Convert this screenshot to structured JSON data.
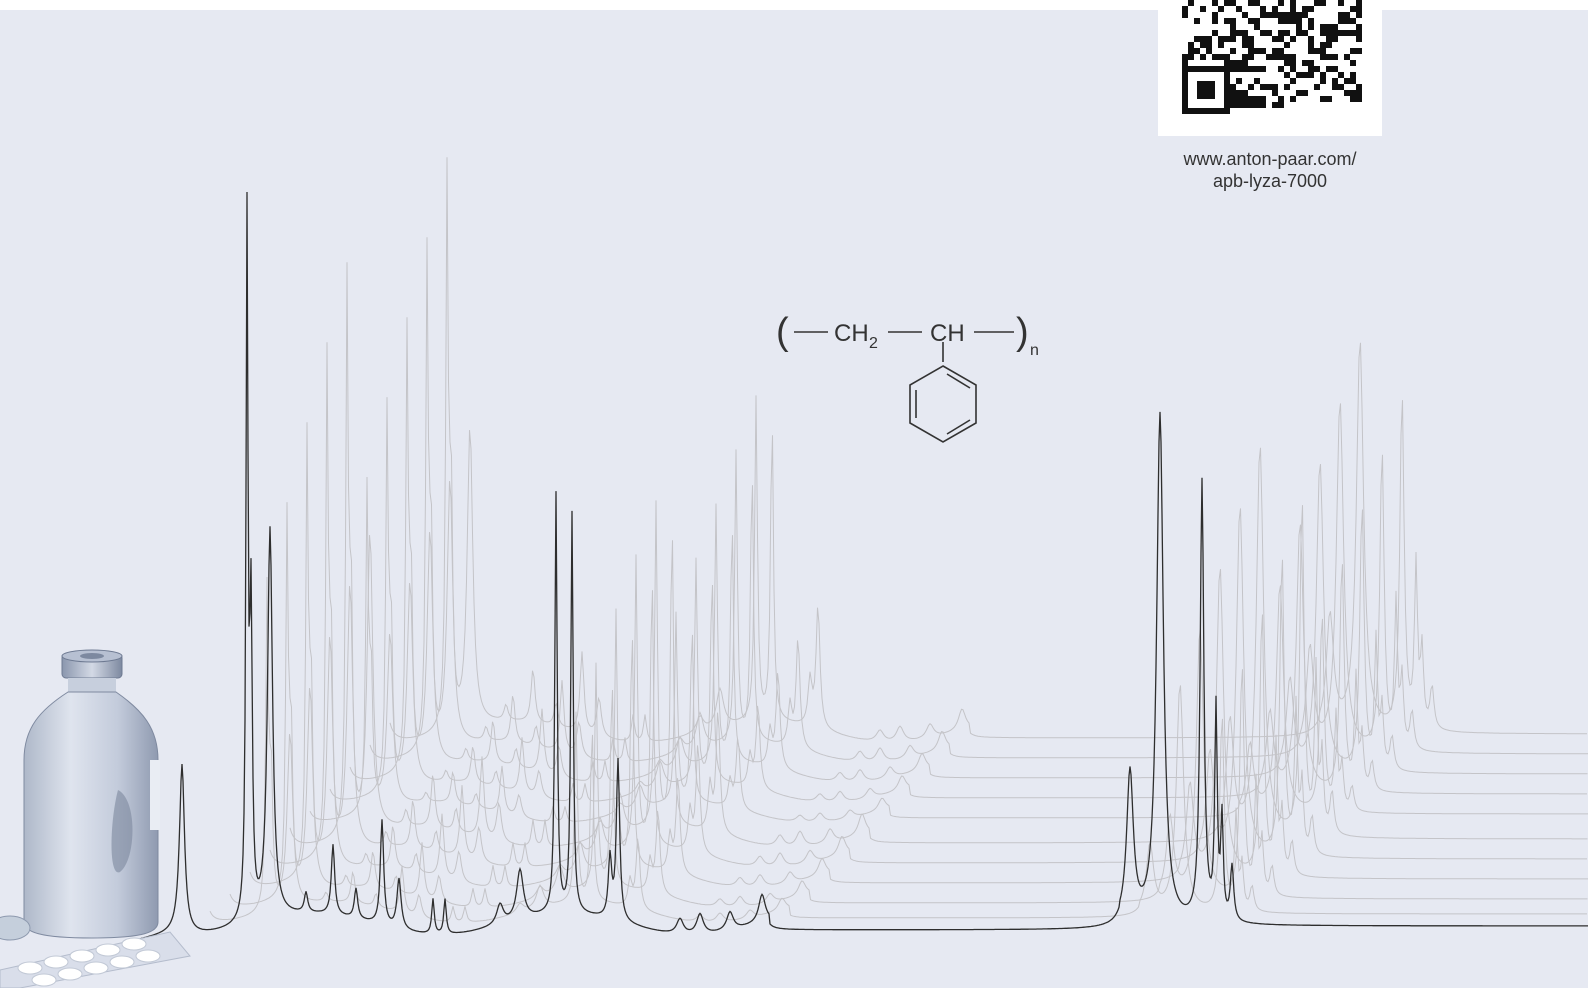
{
  "qr": {
    "url_line1": "www.anton-paar.com/",
    "url_line2": "apb-lyza-7000"
  },
  "formula": {
    "open_paren": "(",
    "close_paren": ")",
    "group1_main": "CH",
    "group1_sub": "2",
    "group2": "CH",
    "repeat_sub": "n"
  },
  "colors": {
    "background": "#e6e9f2",
    "main_spectrum": "#2e2e2e",
    "ghost_spectrum": "#c4c4c8",
    "text": "#333333"
  },
  "icons": {
    "qr": "qr-code-icon",
    "bottle": "medicine-bottle-icon",
    "pills": "pill-blister-icon"
  }
}
